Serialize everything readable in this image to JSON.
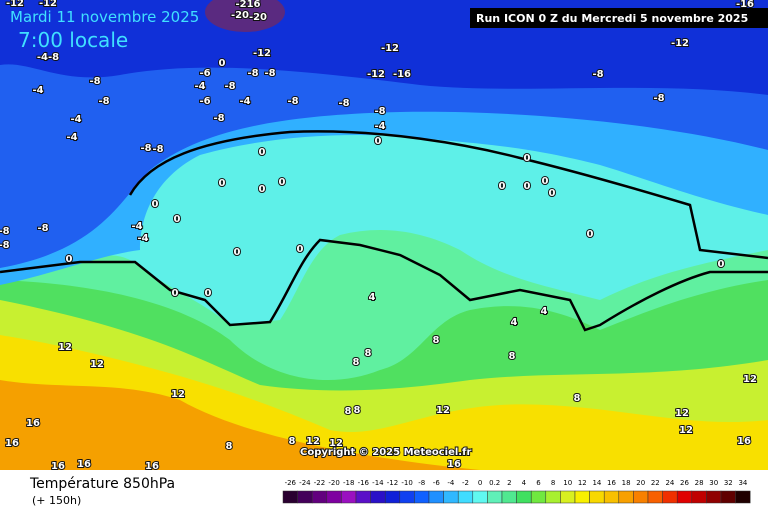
{
  "header": {
    "date": "Mardi 11 novembre 2025",
    "time": "7:00 locale",
    "run": "Run ICON 0 Z du Mercredi 5 novembre 2025"
  },
  "footer": {
    "title": "Température 850hPa",
    "step": "(+ 150h)",
    "copyright": "Copyright © 2025 Meteociel.fr"
  },
  "legend": {
    "labels": [
      "-26",
      "-24",
      "-22",
      "-20",
      "-18",
      "-16",
      "-14",
      "-12",
      "-10",
      "-8",
      "-6",
      "-4",
      "-2",
      "0",
      "0.2",
      "2",
      "4",
      "6",
      "8",
      "10",
      "12",
      "14",
      "16",
      "18",
      "20",
      "22",
      "24",
      "26",
      "28",
      "30",
      "32",
      "34"
    ],
    "colors": [
      "#2a0030",
      "#44005a",
      "#62007e",
      "#7e00a0",
      "#9a10c0",
      "#5a10c8",
      "#2a10c8",
      "#1020d8",
      "#1040f0",
      "#1060ff",
      "#2090ff",
      "#30b8ff",
      "#40dcff",
      "#60f8f0",
      "#60f0b8",
      "#50e890",
      "#40e060",
      "#70e840",
      "#a8f030",
      "#d8f020",
      "#f8f000",
      "#f8d800",
      "#f8c000",
      "#f8a000",
      "#f88000",
      "#f86000",
      "#f03000",
      "#e00000",
      "#c00000",
      "#900000",
      "#600000",
      "#200000"
    ]
  },
  "map_labels": [
    "-12",
    "-12",
    "-216",
    "-20",
    "-20",
    "-12",
    "-12",
    "-16",
    "-12",
    "-4-8",
    "-12",
    "-16",
    "-8",
    "-6",
    "0",
    "-8",
    "-8",
    "-8",
    "-4",
    "-8",
    "-6",
    "-4",
    "-8",
    "-8",
    "-8",
    "-8",
    "-4",
    "-4",
    "-8",
    "-8",
    "-4",
    "0",
    "-4",
    "-8",
    "-8",
    "0",
    "0",
    "0",
    "0",
    "0",
    "0",
    "-4",
    "-4",
    "-8",
    "-8",
    "-8",
    "0",
    "0",
    "0",
    "0",
    "0",
    "4",
    "0",
    "0",
    "0",
    "0",
    "0",
    "0",
    "0",
    "4",
    "4",
    "12",
    "12",
    "8",
    "8",
    "8",
    "8",
    "12",
    "8",
    "8",
    "12",
    "8",
    "12",
    "12",
    "12",
    "16",
    "16",
    "8",
    "8",
    "12",
    "12",
    "16",
    "16",
    "16",
    "16",
    "16"
  ]
}
